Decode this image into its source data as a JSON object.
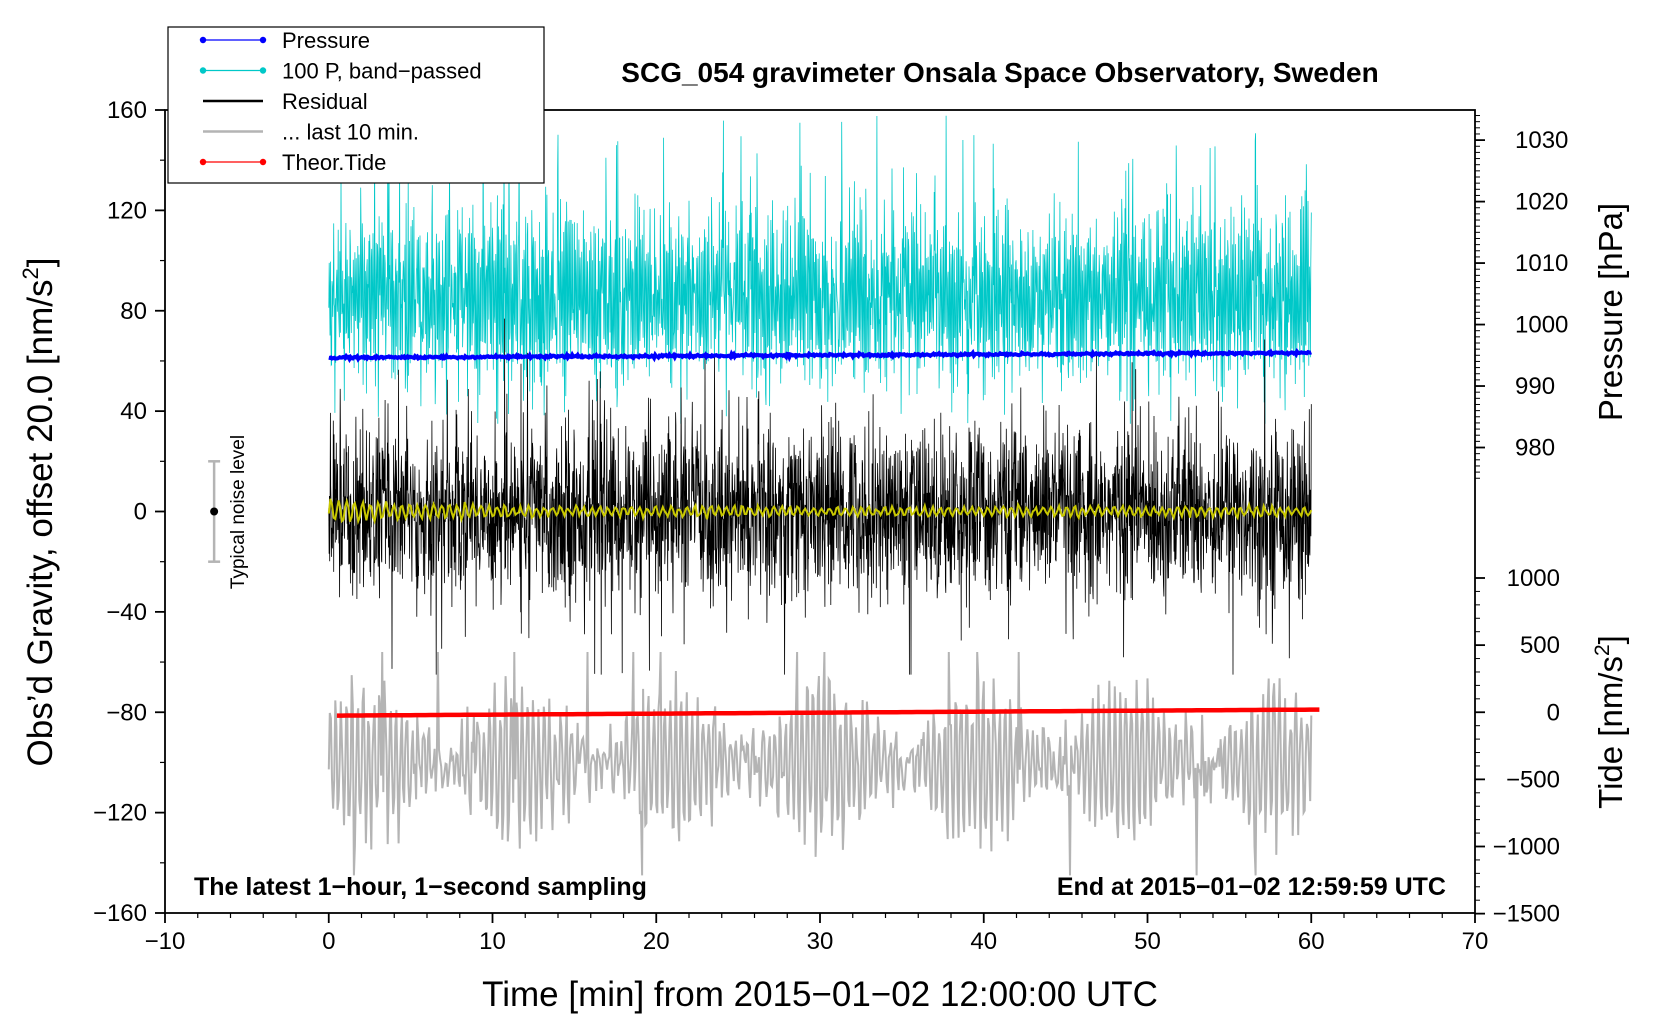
{
  "chart_data": {
    "type": "line",
    "title": "SCG_054 gravimeter Onsala Space Observatory, Sweden",
    "xlabel": "Time [min] from 2015−01−02 12:00:00 UTC",
    "ylabel_left_main": "Obs’d Gravity, offset 20.0 [nm/s",
    "ylabel_left_sup": "2",
    "ylabel_left_tail": "]",
    "ylabel_right_pressure": "Pressure [hPa]",
    "ylabel_right_tide_main": "Tide [nm/s",
    "ylabel_right_tide_sup": "2",
    "ylabel_right_tide_tail": "]",
    "xlim": [
      -10,
      70
    ],
    "ylim_left": [
      -160,
      160
    ],
    "x_ticks": [
      -10,
      0,
      10,
      20,
      30,
      40,
      50,
      60,
      70
    ],
    "x_tick_labels": [
      "−10",
      "0",
      "10",
      "20",
      "30",
      "40",
      "50",
      "60",
      "70"
    ],
    "y_ticks_left": [
      160,
      120,
      80,
      40,
      0,
      -40,
      -80,
      -120,
      -160
    ],
    "y_tick_labels_left": [
      "160",
      "120",
      "80",
      "40",
      "0",
      "−40",
      "−80",
      "−120",
      "−160"
    ],
    "pressure_axis": {
      "ticks": [
        1030,
        1020,
        1010,
        1000,
        990,
        980
      ],
      "tick_labels": [
        "1030",
        "1020",
        "1010",
        "1000",
        "990",
        "980"
      ],
      "ref_hpa": 1000,
      "ref_gravity": 74.5,
      "units_per_hpa": 2.45
    },
    "tide_axis": {
      "ticks": [
        1000,
        500,
        0,
        -500,
        -1000,
        -1500
      ],
      "tick_labels": [
        "1000",
        "500",
        "0",
        "−500",
        "−1000",
        "−1500"
      ],
      "ref_tide": 0,
      "ref_gravity": -80,
      "units_per_nms2": 0.0535
    },
    "legend": {
      "position": "top-left",
      "entries": [
        {
          "label": "Pressure",
          "color": "#0000ff",
          "marker": true
        },
        {
          "label": "100 P, band−passed",
          "color": "#00c8c8",
          "marker": true
        },
        {
          "label": "Residual",
          "color": "#000000",
          "marker": false
        },
        {
          "label": "... last 10 min.",
          "color": "#b4b4b4",
          "marker": false
        },
        {
          "label": "Theor.Tide",
          "color": "#ff0000",
          "marker": true
        }
      ]
    },
    "noise_bar": {
      "label": "Typical noise level",
      "x": -7,
      "center": 0,
      "low": -20,
      "high": 20
    },
    "annotation_left": "The latest 1−hour, 1−second sampling",
    "annotation_right": "End at 2015−01−02 12:59:59 UTC",
    "series": [
      {
        "name": "Pressure",
        "color": "#0000ff",
        "x_range": [
          0,
          60
        ],
        "start_hpa": 994.6,
        "end_hpa": 995.4,
        "ripple_hpa": 0.25
      },
      {
        "name": "100 P, band-passed",
        "color": "#00c8c8",
        "x_range": [
          0,
          60
        ],
        "center": 85,
        "amplitude": 35,
        "spike_max": 160,
        "spike_min": 35
      },
      {
        "name": "Residual",
        "color": "#000000",
        "x_range": [
          0,
          60
        ],
        "center": 0,
        "amplitude": 35,
        "spike_max": 80,
        "spike_min": -65
      },
      {
        "name": "Residual smoothed",
        "color": "#c8c800",
        "x_range": [
          0,
          60
        ],
        "center": 0,
        "amplitude": 2
      },
      {
        "name": "... last 10 min.",
        "color": "#b4b4b4",
        "x_range": [
          0,
          60
        ],
        "center": -100,
        "amplitude": 30,
        "spike_max": -56,
        "spike_min": -148
      },
      {
        "name": "Theor.Tide",
        "color": "#ff0000",
        "x_range": [
          0.5,
          60.5
        ],
        "start_nms2": -25,
        "end_nms2": 20
      }
    ]
  },
  "colors": {
    "pressure": "#0000ff",
    "bandpassed": "#00c8c8",
    "residual": "#000000",
    "smoothed": "#c8c800",
    "last10": "#b4b4b4",
    "tide": "#ff0000",
    "noise_bar": "#b4b4b4"
  }
}
